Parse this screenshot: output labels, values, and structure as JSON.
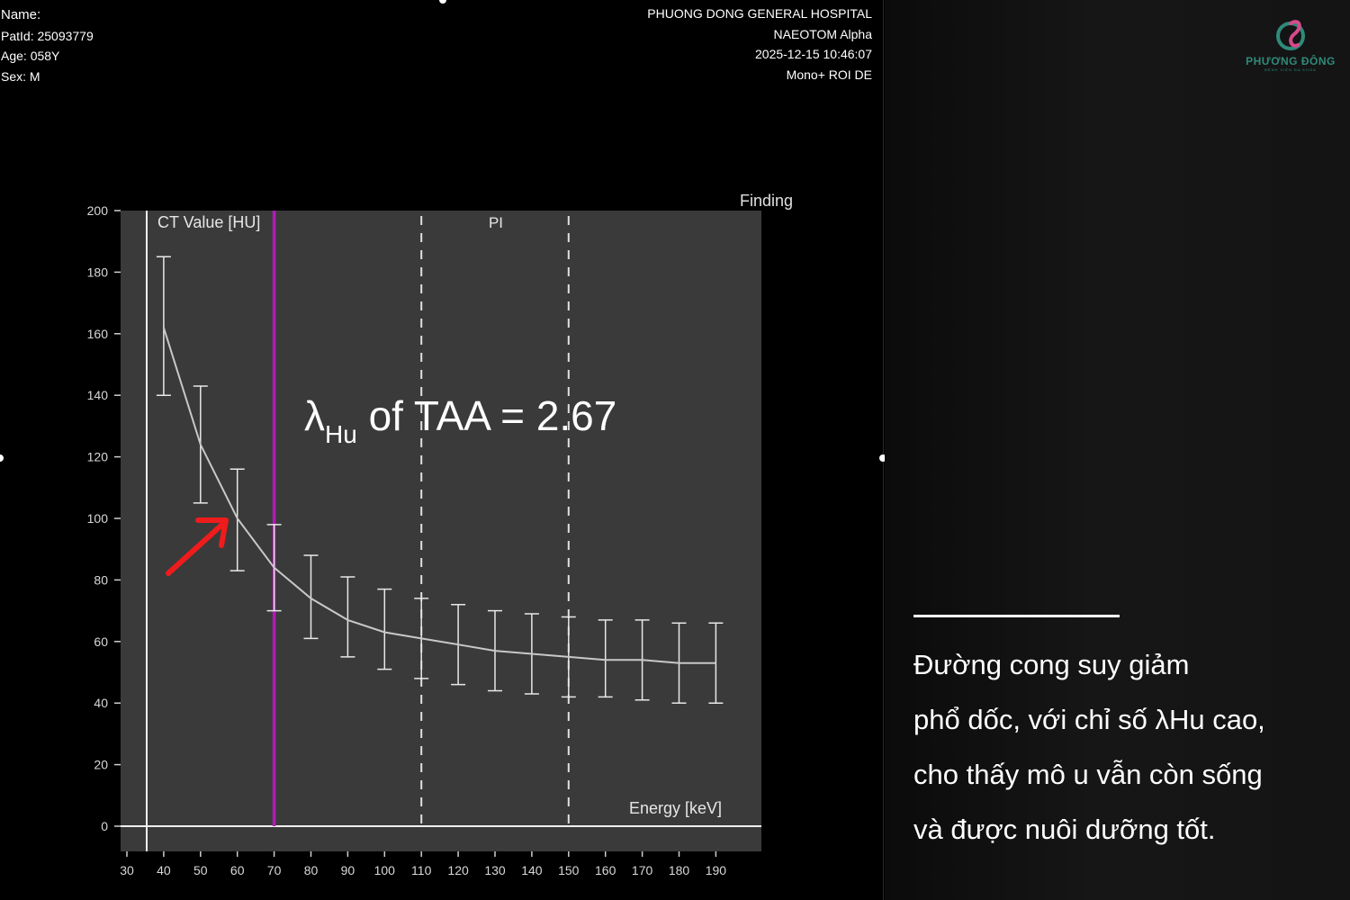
{
  "patient": {
    "name_label": "Name:",
    "patid": "PatId: 25093779",
    "age": "Age: 058Y",
    "sex": "Sex: M"
  },
  "study": {
    "hospital": "PHUONG DONG GENERAL HOSPITAL",
    "scanner": "NAEOTOM Alpha",
    "datetime": "2025-12-15  10:46:07",
    "mode": "Mono+ ROI DE"
  },
  "chart_data": {
    "type": "line",
    "finding_label": "Finding",
    "ylabel": "CT Value [HU]",
    "xlabel": "Energy [keV]",
    "region_label": "PI",
    "annotation": "λHu of TAA = 2.67",
    "annotation_main": "λ",
    "annotation_sub": "Hu",
    "annotation_rest": " of TAA = 2.67",
    "xlim": [
      30,
      195
    ],
    "ylim": [
      0,
      200
    ],
    "x_ticks": [
      30,
      40,
      50,
      60,
      70,
      80,
      90,
      100,
      110,
      120,
      130,
      140,
      150,
      160,
      170,
      180,
      190
    ],
    "y_ticks": [
      0,
      20,
      40,
      60,
      80,
      100,
      120,
      140,
      160,
      180,
      200
    ],
    "marker_line_kev": 70,
    "pi_region_kev": [
      110,
      150
    ],
    "series": [
      {
        "x": [
          40,
          50,
          60,
          70,
          80,
          90,
          100,
          110,
          120,
          130,
          140,
          150,
          160,
          170,
          180,
          190
        ],
        "y": [
          162,
          124,
          100,
          84,
          74,
          67,
          63,
          61,
          59,
          57,
          56,
          55,
          54,
          54,
          53,
          53
        ],
        "err_high": [
          185,
          143,
          116,
          98,
          88,
          81,
          77,
          74,
          72,
          70,
          69,
          68,
          67,
          67,
          66,
          66
        ],
        "err_low": [
          140,
          105,
          83,
          70,
          61,
          55,
          51,
          48,
          46,
          44,
          43,
          42,
          42,
          41,
          40,
          40
        ]
      }
    ]
  },
  "caption": {
    "lines": [
      "Đường cong suy giảm",
      "phổ dốc, với chỉ số λHu cao,",
      "cho thấy mô u vẫn còn sống",
      "và được nuôi dưỡng tốt."
    ]
  },
  "logo": {
    "name": "PHƯƠNG ĐÔNG",
    "tagline": "BỆNH VIỆN ĐA KHOA"
  },
  "colors": {
    "plot_bg": "#3a3a3a",
    "marker": "#b21ab8",
    "arrow": "#ee1c1c",
    "curve": "#c8c8c8",
    "brand": "#2f8a7a"
  }
}
